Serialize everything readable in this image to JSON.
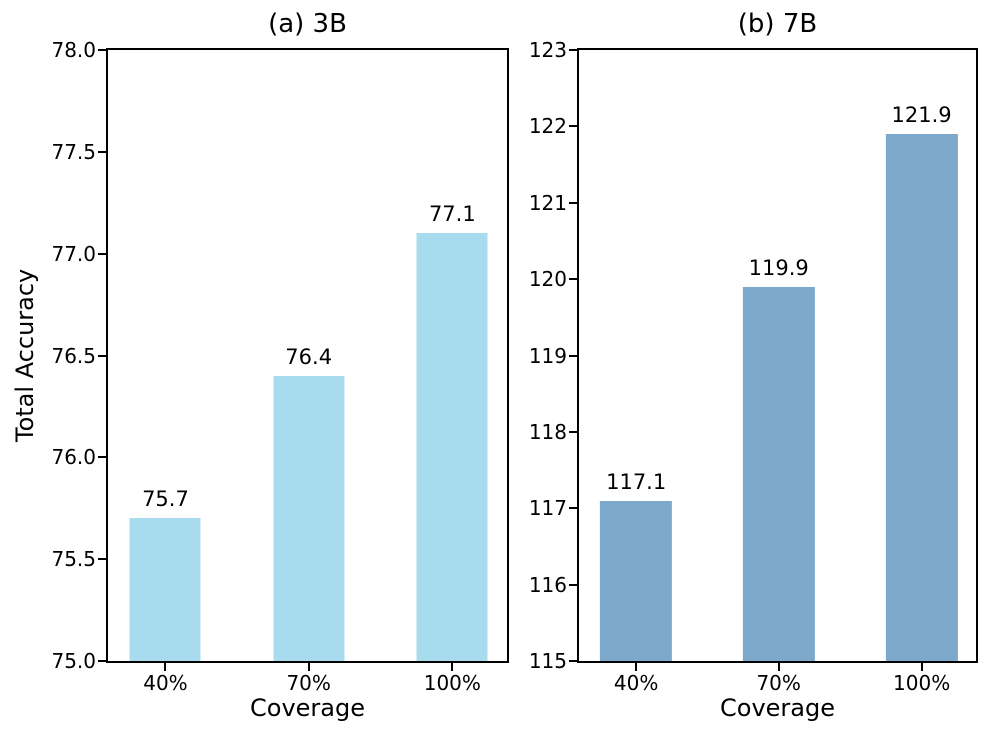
{
  "chart_data": [
    {
      "type": "bar",
      "title": "(a) 3B",
      "xlabel": "Coverage",
      "ylabel": "Total Accuracy",
      "categories": [
        "40%",
        "70%",
        "100%"
      ],
      "values": [
        75.7,
        76.4,
        77.1
      ],
      "bar_labels": [
        "75.7",
        "76.4",
        "77.1"
      ],
      "bar_color": "#A9DBEE",
      "ylim": [
        75.0,
        78.0
      ],
      "yticks": [
        "75.0",
        "75.5",
        "76.0",
        "76.5",
        "77.0",
        "77.5",
        "78.0"
      ],
      "grid": false,
      "legend": "none",
      "bar_center_fractions": [
        0.144,
        0.503,
        0.863
      ],
      "bar_width_fraction": 0.178
    },
    {
      "type": "bar",
      "title": "(b) 7B",
      "xlabel": "Coverage",
      "ylabel": "",
      "categories": [
        "40%",
        "70%",
        "100%"
      ],
      "values": [
        117.1,
        119.9,
        121.9
      ],
      "bar_labels": [
        "117.1",
        "119.9",
        "121.9"
      ],
      "bar_color": "#7CA8CB",
      "ylim": [
        115,
        123
      ],
      "yticks": [
        "115",
        "116",
        "117",
        "118",
        "119",
        "120",
        "121",
        "122",
        "123"
      ],
      "grid": false,
      "legend": "none",
      "bar_center_fractions": [
        0.144,
        0.503,
        0.863
      ],
      "bar_width_fraction": 0.182
    }
  ]
}
